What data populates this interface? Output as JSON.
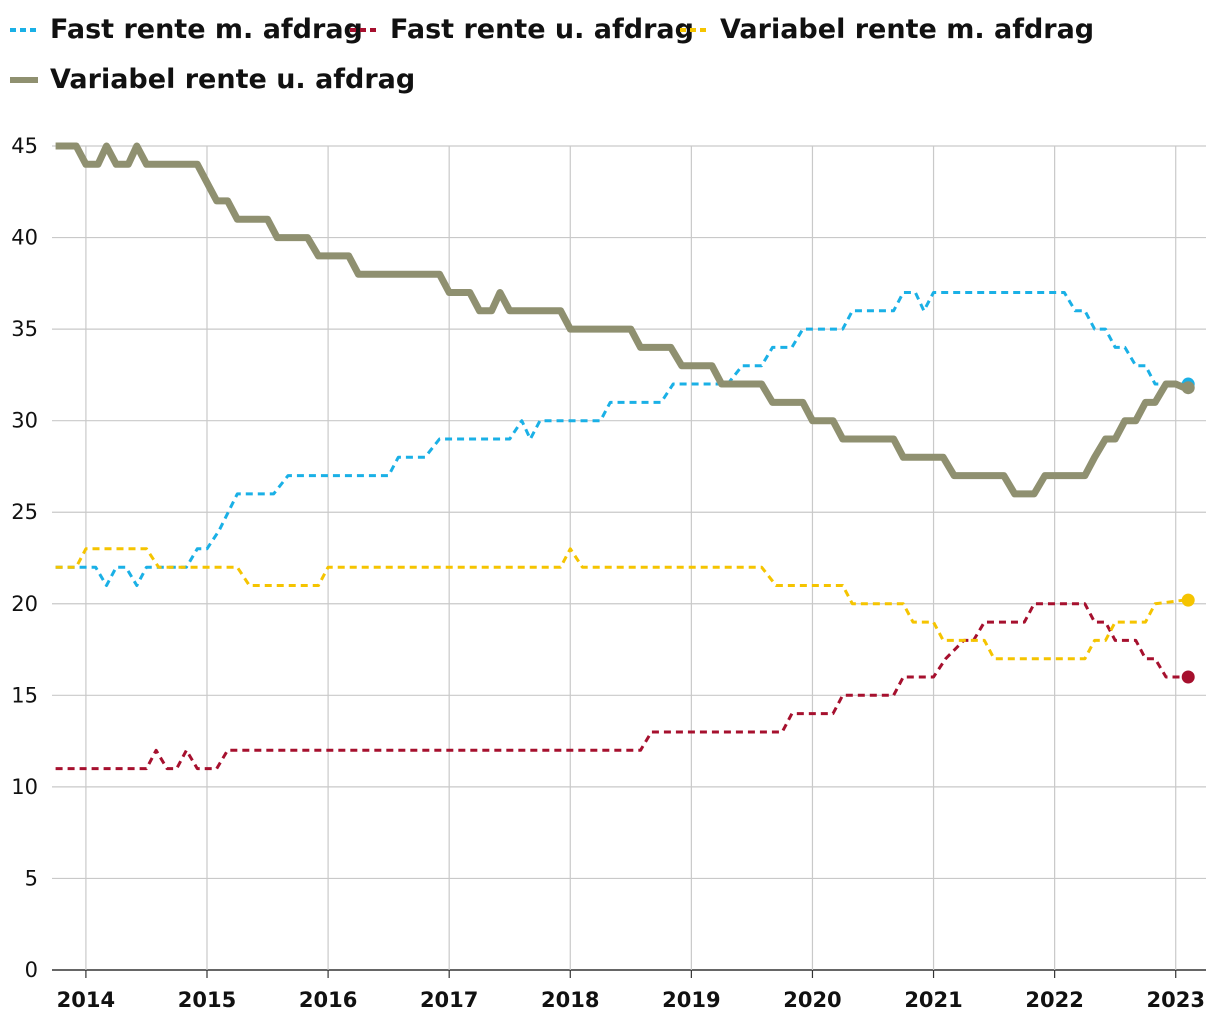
{
  "chart_data": {
    "type": "line",
    "title": "",
    "xlabel": "",
    "ylabel": "",
    "ylim": [
      0,
      45
    ],
    "yticks": [
      0,
      5,
      10,
      15,
      20,
      25,
      30,
      35,
      40,
      45
    ],
    "xlim": [
      2013.72,
      2023.25
    ],
    "xticks": [
      2014,
      2015,
      2016,
      2017,
      2018,
      2019,
      2020,
      2021,
      2022,
      2023
    ],
    "grid": true,
    "legend_position": "top-left",
    "series": [
      {
        "name": "Fast rente m. afdrag",
        "color": "#1ab0e6",
        "style": "dashed",
        "end_marker": true,
        "points": [
          [
            2013.75,
            22
          ],
          [
            2013.9,
            22
          ],
          [
            2014.08,
            22
          ],
          [
            2014.17,
            21
          ],
          [
            2014.25,
            22
          ],
          [
            2014.33,
            22
          ],
          [
            2014.42,
            21
          ],
          [
            2014.5,
            22
          ],
          [
            2014.6,
            22
          ],
          [
            2014.83,
            22
          ],
          [
            2014.92,
            23
          ],
          [
            2015.0,
            23
          ],
          [
            2015.1,
            24
          ],
          [
            2015.25,
            26
          ],
          [
            2015.55,
            26
          ],
          [
            2015.67,
            27
          ],
          [
            2016.5,
            27
          ],
          [
            2016.58,
            28
          ],
          [
            2016.8,
            28
          ],
          [
            2016.92,
            29
          ],
          [
            2017.5,
            29
          ],
          [
            2017.6,
            30
          ],
          [
            2017.67,
            29
          ],
          [
            2017.75,
            30
          ],
          [
            2018.25,
            30
          ],
          [
            2018.33,
            31
          ],
          [
            2018.75,
            31
          ],
          [
            2018.85,
            32
          ],
          [
            2019.3,
            32
          ],
          [
            2019.42,
            33
          ],
          [
            2019.58,
            33
          ],
          [
            2019.67,
            34
          ],
          [
            2019.83,
            34
          ],
          [
            2019.92,
            35
          ],
          [
            2020.25,
            35
          ],
          [
            2020.33,
            36
          ],
          [
            2020.67,
            36
          ],
          [
            2020.75,
            37
          ],
          [
            2020.85,
            37
          ],
          [
            2020.92,
            36
          ],
          [
            2021.0,
            37
          ],
          [
            2022.08,
            37
          ],
          [
            2022.17,
            36
          ],
          [
            2022.25,
            36
          ],
          [
            2022.33,
            35
          ],
          [
            2022.42,
            35
          ],
          [
            2022.5,
            34
          ],
          [
            2022.58,
            34
          ],
          [
            2022.67,
            33
          ],
          [
            2022.75,
            33
          ],
          [
            2022.83,
            32
          ],
          [
            2023.0,
            32
          ],
          [
            2023.07,
            32
          ]
        ]
      },
      {
        "name": "Fast rente u. afdrag",
        "color": "#a6102e",
        "style": "dashed",
        "end_marker": true,
        "points": [
          [
            2013.75,
            11
          ],
          [
            2014.5,
            11
          ],
          [
            2014.58,
            12
          ],
          [
            2014.67,
            11
          ],
          [
            2014.75,
            11
          ],
          [
            2014.83,
            12
          ],
          [
            2014.92,
            11
          ],
          [
            2015.08,
            11
          ],
          [
            2015.17,
            12
          ],
          [
            2018.5,
            12
          ],
          [
            2018.58,
            12
          ],
          [
            2018.67,
            13
          ],
          [
            2019.75,
            13
          ],
          [
            2019.83,
            14
          ],
          [
            2020.17,
            14
          ],
          [
            2020.25,
            15
          ],
          [
            2020.67,
            15
          ],
          [
            2020.75,
            16
          ],
          [
            2021.0,
            16
          ],
          [
            2021.1,
            17
          ],
          [
            2021.25,
            18
          ],
          [
            2021.33,
            18
          ],
          [
            2021.42,
            19
          ],
          [
            2021.75,
            19
          ],
          [
            2021.83,
            20
          ],
          [
            2022.25,
            20
          ],
          [
            2022.33,
            19
          ],
          [
            2022.42,
            19
          ],
          [
            2022.5,
            18
          ],
          [
            2022.67,
            18
          ],
          [
            2022.75,
            17
          ],
          [
            2022.83,
            17
          ],
          [
            2022.92,
            16
          ],
          [
            2023.07,
            16
          ]
        ]
      },
      {
        "name": "Variabel rente m. afdrag",
        "color": "#f5c400",
        "style": "dashed",
        "end_marker": true,
        "points": [
          [
            2013.75,
            22
          ],
          [
            2013.92,
            22
          ],
          [
            2014.0,
            23
          ],
          [
            2014.5,
            23
          ],
          [
            2014.6,
            22
          ],
          [
            2015.25,
            22
          ],
          [
            2015.35,
            21
          ],
          [
            2015.92,
            21
          ],
          [
            2016.0,
            22
          ],
          [
            2017.92,
            22
          ],
          [
            2018.0,
            23
          ],
          [
            2018.1,
            22
          ],
          [
            2019.58,
            22
          ],
          [
            2019.7,
            21
          ],
          [
            2020.25,
            21
          ],
          [
            2020.33,
            20
          ],
          [
            2020.75,
            20
          ],
          [
            2020.83,
            19
          ],
          [
            2021.0,
            19
          ],
          [
            2021.08,
            18
          ],
          [
            2021.42,
            18
          ],
          [
            2021.5,
            17
          ],
          [
            2022.25,
            17
          ],
          [
            2022.33,
            18
          ],
          [
            2022.42,
            18
          ],
          [
            2022.5,
            19
          ],
          [
            2022.75,
            19
          ],
          [
            2022.83,
            20
          ],
          [
            2023.07,
            20.2
          ]
        ]
      },
      {
        "name": "Variabel rente u. afdrag",
        "color": "#8f9070",
        "style": "solid",
        "end_marker": true,
        "points": [
          [
            2013.75,
            45
          ],
          [
            2013.92,
            45
          ],
          [
            2014.0,
            44
          ],
          [
            2014.1,
            44
          ],
          [
            2014.17,
            45
          ],
          [
            2014.25,
            44
          ],
          [
            2014.35,
            44
          ],
          [
            2014.42,
            45
          ],
          [
            2014.5,
            44
          ],
          [
            2014.92,
            44
          ],
          [
            2015.0,
            43
          ],
          [
            2015.08,
            42
          ],
          [
            2015.17,
            42
          ],
          [
            2015.25,
            41
          ],
          [
            2015.5,
            41
          ],
          [
            2015.58,
            40
          ],
          [
            2015.83,
            40
          ],
          [
            2015.92,
            39
          ],
          [
            2016.17,
            39
          ],
          [
            2016.25,
            38
          ],
          [
            2016.92,
            38
          ],
          [
            2017.0,
            37
          ],
          [
            2017.17,
            37
          ],
          [
            2017.25,
            36
          ],
          [
            2017.35,
            36
          ],
          [
            2017.42,
            37
          ],
          [
            2017.5,
            36
          ],
          [
            2017.92,
            36
          ],
          [
            2018.0,
            35
          ],
          [
            2018.5,
            35
          ],
          [
            2018.58,
            34
          ],
          [
            2018.83,
            34
          ],
          [
            2018.92,
            33
          ],
          [
            2019.17,
            33
          ],
          [
            2019.25,
            32
          ],
          [
            2019.58,
            32
          ],
          [
            2019.67,
            31
          ],
          [
            2019.92,
            31
          ],
          [
            2020.0,
            30
          ],
          [
            2020.17,
            30
          ],
          [
            2020.25,
            29
          ],
          [
            2020.67,
            29
          ],
          [
            2020.75,
            28
          ],
          [
            2021.08,
            28
          ],
          [
            2021.17,
            27
          ],
          [
            2021.58,
            27
          ],
          [
            2021.67,
            26
          ],
          [
            2021.83,
            26
          ],
          [
            2021.92,
            27
          ],
          [
            2022.25,
            27
          ],
          [
            2022.33,
            28
          ],
          [
            2022.42,
            29
          ],
          [
            2022.5,
            29
          ],
          [
            2022.58,
            30
          ],
          [
            2022.67,
            30
          ],
          [
            2022.75,
            31
          ],
          [
            2022.83,
            31
          ],
          [
            2022.92,
            32
          ],
          [
            2023.0,
            32
          ],
          [
            2023.07,
            31.8
          ]
        ]
      }
    ]
  }
}
